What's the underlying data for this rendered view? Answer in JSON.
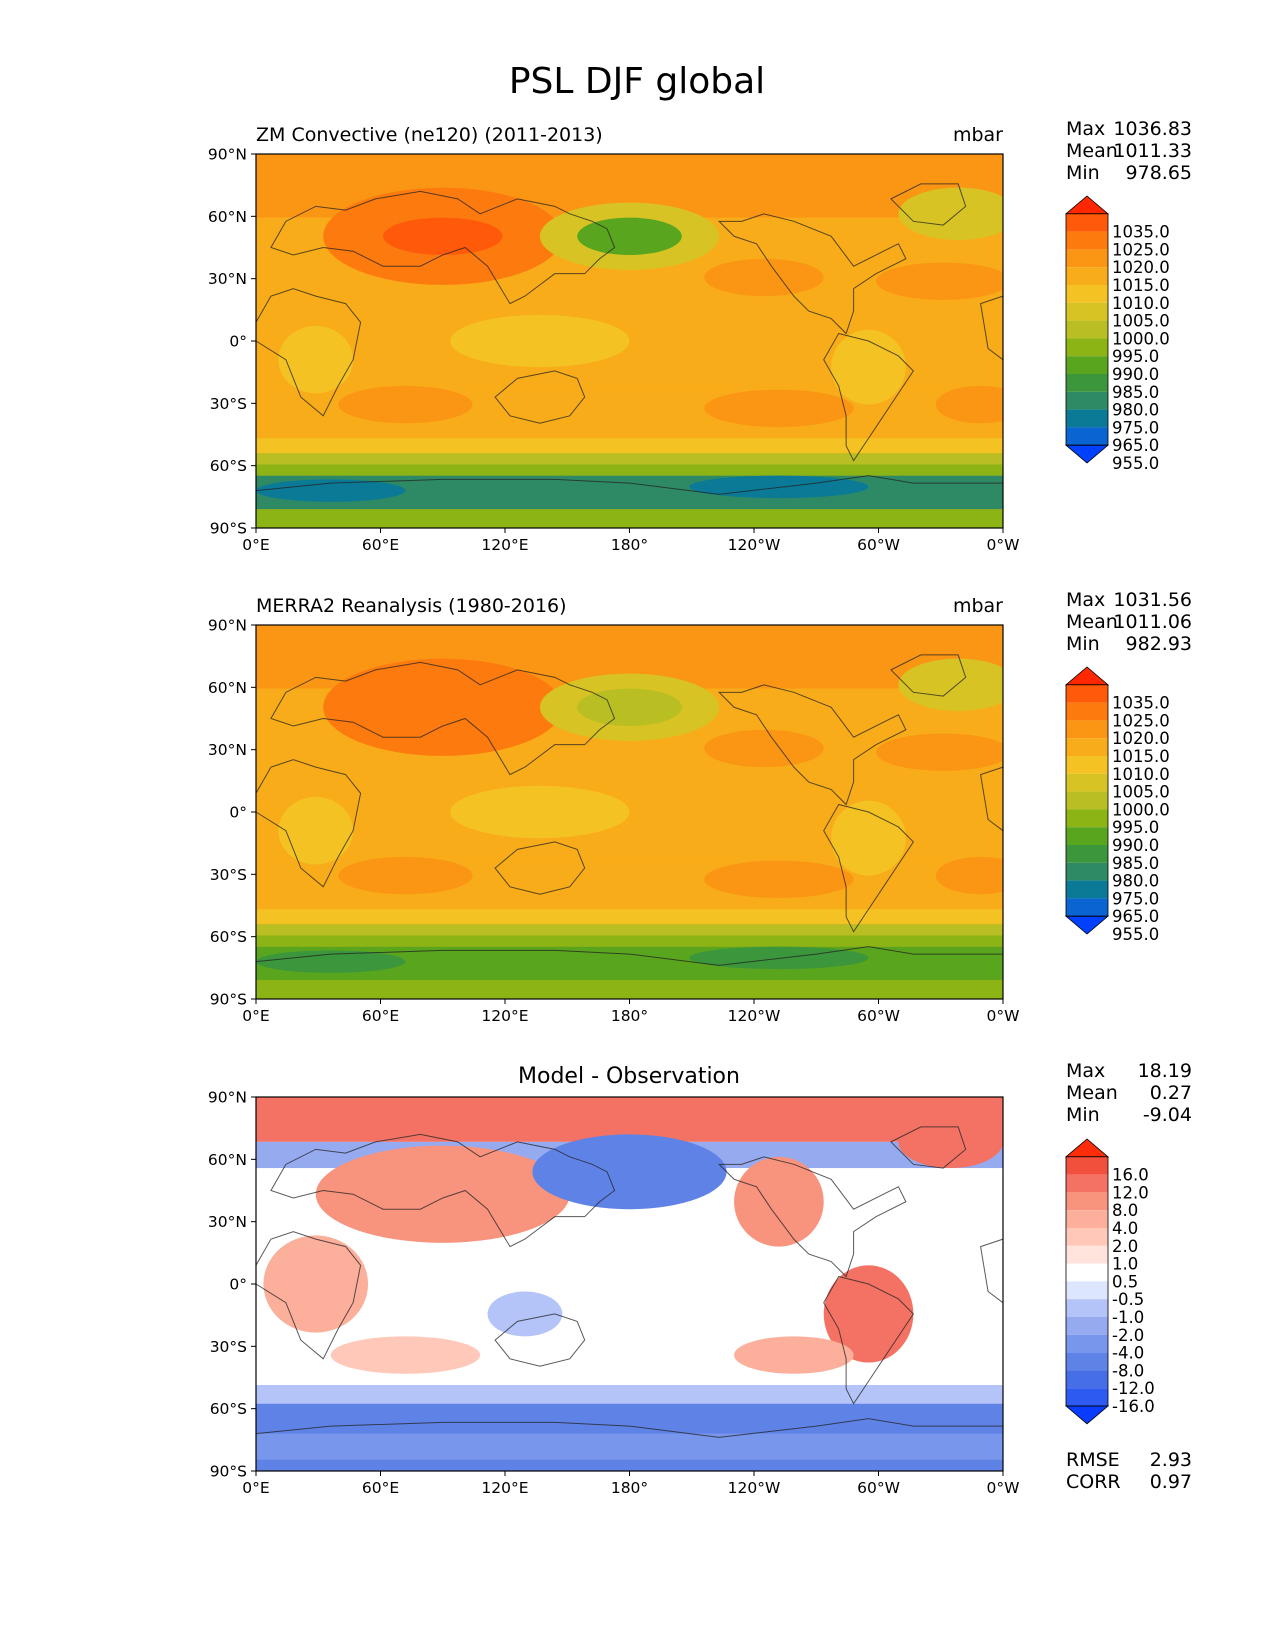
{
  "figure_title": "PSL DJF global",
  "panels": [
    {
      "id": "test",
      "title": "ZM Convective (ne120) (2011-2013)",
      "units": "mbar",
      "stats": {
        "labels": [
          "Max",
          "Mean",
          "Min"
        ],
        "values": [
          "1036.83",
          "1011.33",
          "978.65"
        ]
      },
      "colorbar_labels": [
        "1035.0",
        "1025.0",
        "1020.0",
        "1015.0",
        "1010.0",
        "1005.0",
        "1000.0",
        "995.0",
        "990.0",
        "985.0",
        "980.0",
        "975.0",
        "965.0",
        "955.0"
      ]
    },
    {
      "id": "ref",
      "title": "MERRA2 Reanalysis (1980-2016)",
      "units": "mbar",
      "stats": {
        "labels": [
          "Max",
          "Mean",
          "Min"
        ],
        "values": [
          "1031.56",
          "1011.06",
          "982.93"
        ]
      },
      "colorbar_labels": [
        "1035.0",
        "1025.0",
        "1020.0",
        "1015.0",
        "1010.0",
        "1005.0",
        "1000.0",
        "995.0",
        "990.0",
        "985.0",
        "980.0",
        "975.0",
        "965.0",
        "955.0"
      ]
    },
    {
      "id": "diff",
      "title": "Model - Observation",
      "units": "",
      "stats": {
        "labels": [
          "Max",
          "Mean",
          "Min"
        ],
        "values": [
          "18.19",
          "0.27",
          "-9.04"
        ]
      },
      "colorbar_labels": [
        "16.0",
        "12.0",
        "8.0",
        "4.0",
        "2.0",
        "1.0",
        "0.5",
        "-0.5",
        "-1.0",
        "-2.0",
        "-4.0",
        "-8.0",
        "-12.0",
        "-16.0"
      ],
      "metrics": {
        "labels": [
          "RMSE",
          "CORR"
        ],
        "values": [
          "2.93",
          "0.97"
        ]
      }
    }
  ],
  "x_ticks": [
    "0°E",
    "60°E",
    "120°E",
    "180°",
    "120°W",
    "60°W",
    "0°W"
  ],
  "y_ticks": [
    "90°N",
    "60°N",
    "30°N",
    "0°",
    "30°S",
    "60°S",
    "90°S"
  ],
  "colors": {
    "psl_scale": [
      "#0040ff",
      "#0a64d2",
      "#0b7a96",
      "#2e8a64",
      "#3c963c",
      "#5aa51e",
      "#8cb414",
      "#b9be23",
      "#d7c323",
      "#f4c323",
      "#f9ac19",
      "#fb9614",
      "#fd7a0f",
      "#fe5a0a",
      "#ff2800"
    ],
    "diff_scale": [
      "#0a3cff",
      "#2d5af0",
      "#466ee6",
      "#5f82e6",
      "#7896ec",
      "#96aaf0",
      "#b4c3f8",
      "#dce6ff",
      "#ffffff",
      "#ffe3dc",
      "#ffc8b9",
      "#fcaf9b",
      "#f8937e",
      "#f47264",
      "#f0503c",
      "#ff2d0a"
    ]
  },
  "chart_data": [
    {
      "type": "heatmap",
      "title": "ZM Convective (ne120) (2011-2013)",
      "variable": "PSL",
      "season": "DJF",
      "units": "mbar",
      "levels": [
        955,
        965,
        975,
        980,
        985,
        990,
        995,
        1000,
        1005,
        1010,
        1015,
        1020,
        1025,
        1035
      ],
      "xlim": [
        0,
        360
      ],
      "ylim": [
        -90,
        90
      ],
      "stats": {
        "max": 1036.83,
        "mean": 1011.33,
        "min": 978.65
      }
    },
    {
      "type": "heatmap",
      "title": "MERRA2 Reanalysis (1980-2016)",
      "variable": "PSL",
      "season": "DJF",
      "units": "mbar",
      "levels": [
        955,
        965,
        975,
        980,
        985,
        990,
        995,
        1000,
        1005,
        1010,
        1015,
        1020,
        1025,
        1035
      ],
      "xlim": [
        0,
        360
      ],
      "ylim": [
        -90,
        90
      ],
      "stats": {
        "max": 1031.56,
        "mean": 1011.06,
        "min": 982.93
      }
    },
    {
      "type": "heatmap",
      "title": "Model - Observation",
      "levels": [
        -16,
        -12,
        -8,
        -4,
        -2,
        -1,
        -0.5,
        0.5,
        1,
        2,
        4,
        8,
        12,
        16
      ],
      "xlim": [
        0,
        360
      ],
      "ylim": [
        -90,
        90
      ],
      "stats": {
        "max": 18.19,
        "mean": 0.27,
        "min": -9.04,
        "rmse": 2.93,
        "corr": 0.97
      }
    }
  ]
}
